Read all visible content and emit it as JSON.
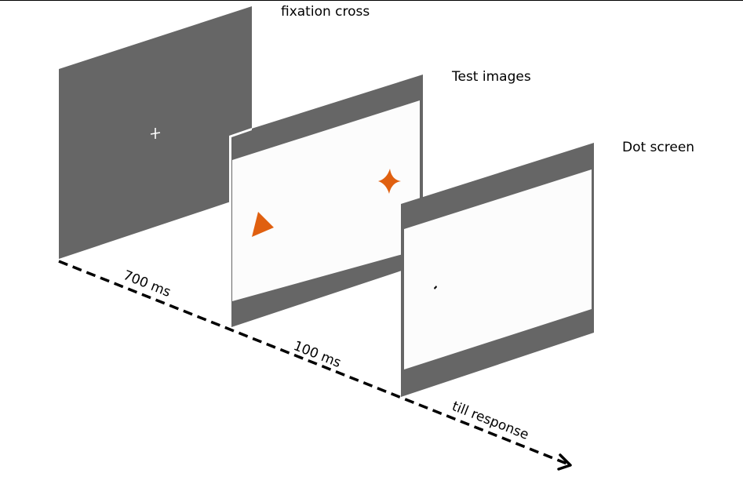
{
  "screens": [
    {
      "id": "fixation",
      "label": "fixation cross"
    },
    {
      "id": "test",
      "label": "Test images"
    },
    {
      "id": "dot",
      "label": "Dot screen"
    }
  ],
  "durations": [
    {
      "id": "fixation",
      "label": "700 ms"
    },
    {
      "id": "test",
      "label": "100 ms"
    },
    {
      "id": "dot",
      "label": "till response"
    }
  ],
  "colors": {
    "frame": "#666666",
    "display": "#fcfcfc",
    "stimulus": "#e06010",
    "fixation_mark": "#ffffff",
    "dot": "#000000",
    "arrow": "#000000"
  },
  "icons": {
    "fixation_mark": "plus-icon",
    "test_shape_left": "triangle-icon",
    "test_shape_right": "four-point-star-icon",
    "response_dot": "dot-icon",
    "timeline_arrowhead": "arrowhead-icon"
  }
}
